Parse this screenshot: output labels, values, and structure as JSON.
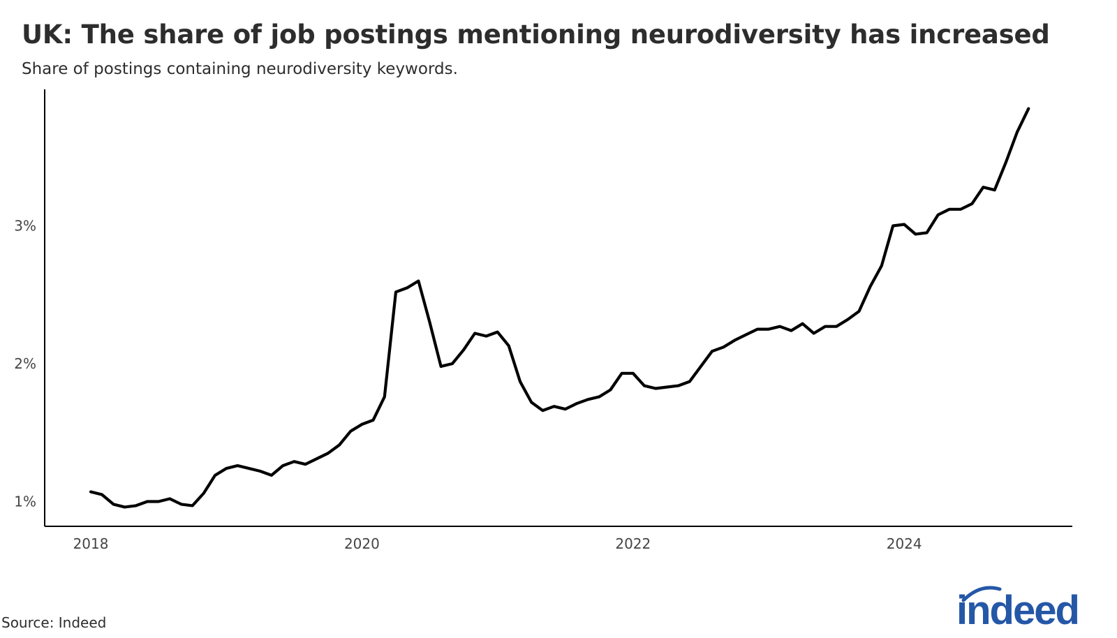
{
  "header": {
    "title": "UK: The share of job postings mentioning neurodiversity has increased",
    "subtitle": "Share of postings containing neurodiversity keywords."
  },
  "footer": {
    "source": "Source: Indeed",
    "logo_text": "indeed"
  },
  "colors": {
    "line": "#000000",
    "logo": "#2557a7"
  },
  "chart_data": {
    "type": "line",
    "title": "UK: The share of job postings mentioning neurodiversity has increased",
    "subtitle": "Share of postings containing neurodiversity keywords.",
    "xlabel": "",
    "ylabel": "",
    "x_ticks": [
      2018,
      2020,
      2022,
      2024
    ],
    "x_tick_labels": [
      "2018",
      "2020",
      "2022",
      "2024"
    ],
    "y_ticks": [
      1,
      2,
      3
    ],
    "y_tick_labels": [
      "1%",
      "2%",
      "3%"
    ],
    "xlim": [
      2017.66,
      2025.24
    ],
    "ylim": [
      0.82,
      3.99
    ],
    "grid": false,
    "legend": "none",
    "series": [
      {
        "x": [
          2018.0,
          2018.083,
          2018.167,
          2018.25,
          2018.333,
          2018.417,
          2018.5,
          2018.583,
          2018.667,
          2018.75,
          2018.833,
          2018.917,
          2019.0,
          2019.083,
          2019.167,
          2019.25,
          2019.333,
          2019.417,
          2019.5,
          2019.583,
          2019.667,
          2019.75,
          2019.833,
          2019.917,
          2020.0,
          2020.083,
          2020.167,
          2020.25,
          2020.333,
          2020.417,
          2020.5,
          2020.583,
          2020.667,
          2020.75,
          2020.833,
          2020.917,
          2021.0,
          2021.083,
          2021.167,
          2021.25,
          2021.333,
          2021.417,
          2021.5,
          2021.583,
          2021.667,
          2021.75,
          2021.833,
          2021.917,
          2022.0,
          2022.083,
          2022.167,
          2022.25,
          2022.333,
          2022.417,
          2022.5,
          2022.583,
          2022.667,
          2022.75,
          2022.833,
          2022.917,
          2023.0,
          2023.083,
          2023.167,
          2023.25,
          2023.333,
          2023.417,
          2023.5,
          2023.583,
          2023.667,
          2023.75,
          2023.833,
          2023.917,
          2024.0,
          2024.083,
          2024.167,
          2024.25,
          2024.333,
          2024.417,
          2024.5,
          2024.583,
          2024.667,
          2024.75,
          2024.833,
          2024.917
        ],
        "y": [
          1.07,
          1.05,
          0.98,
          0.96,
          0.97,
          1.0,
          1.0,
          1.02,
          0.98,
          0.97,
          1.06,
          1.19,
          1.24,
          1.26,
          1.24,
          1.22,
          1.19,
          1.26,
          1.29,
          1.27,
          1.31,
          1.35,
          1.41,
          1.51,
          1.56,
          1.59,
          1.76,
          2.52,
          2.55,
          2.6,
          2.3,
          1.98,
          2.0,
          2.1,
          2.22,
          2.2,
          2.23,
          2.13,
          1.87,
          1.72,
          1.66,
          1.69,
          1.67,
          1.71,
          1.74,
          1.76,
          1.81,
          1.93,
          1.93,
          1.84,
          1.82,
          1.83,
          1.84,
          1.87,
          1.98,
          2.09,
          2.12,
          2.17,
          2.21,
          2.25,
          2.25,
          2.27,
          2.24,
          2.29,
          2.22,
          2.27,
          2.27,
          2.32,
          2.38,
          2.56,
          2.71,
          3.0,
          3.01,
          2.94,
          2.95,
          3.08,
          3.12,
          3.12,
          3.16,
          3.28,
          3.26,
          3.46,
          3.68,
          3.85
        ]
      }
    ]
  }
}
